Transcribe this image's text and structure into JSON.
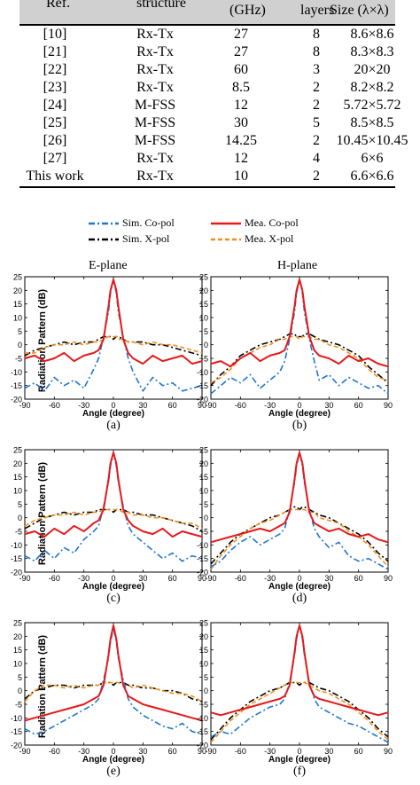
{
  "table": {
    "header": [
      "Ref.",
      "structure",
      "(GHz)",
      "layers",
      "Size (λ×λ)"
    ],
    "rows": [
      [
        "[10]",
        "Rx-Tx",
        "27",
        "8",
        "8.6×8.6"
      ],
      [
        "[21]",
        "Rx-Tx",
        "27",
        "8",
        "8.3×8.3"
      ],
      [
        "[22]",
        "Rx-Tx",
        "60",
        "3",
        "20×20"
      ],
      [
        "[23]",
        "Rx-Tx",
        "8.5",
        "2",
        "8.2×8.2"
      ],
      [
        "[24]",
        "M-FSS",
        "12",
        "2",
        "5.72×5.72"
      ],
      [
        "[25]",
        "M-FSS",
        "30",
        "5",
        "8.5×8.5"
      ],
      [
        "[26]",
        "M-FSS",
        "14.25",
        "2",
        "10.45×10.45"
      ],
      [
        "[27]",
        "Rx-Tx",
        "12",
        "4",
        "6×6"
      ],
      [
        "This work",
        "Rx-Tx",
        "10",
        "2",
        "6.6×6.6"
      ]
    ]
  },
  "legend": {
    "sim_co": "Sim. Co-pol",
    "mea_co": "Mea. Co-pol",
    "sim_x": "Sim. X-pol",
    "mea_x": "Mea. X-pol"
  },
  "colors": {
    "sim_co": "#1f77d0",
    "mea_co": "#e41a1c",
    "sim_x": "#000000",
    "mea_x": "#f28e1c"
  },
  "panel_titles": {
    "e_plane": "E-plane",
    "h_plane": "H-plane"
  },
  "ylabel": "Radiation Pattern (dB)",
  "xlabel": "Angle (degree)",
  "sub_labels": [
    "(a)",
    "(b)",
    "(c)",
    "(d)",
    "(e)",
    "(f)"
  ],
  "chart_data": {
    "type": "line",
    "xlabel": "Angle (degree)",
    "ylabel": "Radiation Pattern (dB)",
    "xlim": [
      -90,
      90
    ],
    "ylim": [
      -20,
      25
    ],
    "xticks": [
      -90,
      -60,
      -30,
      0,
      30,
      60,
      90
    ],
    "yticks": [
      -20,
      -15,
      -10,
      -5,
      0,
      5,
      10,
      15,
      20,
      25
    ],
    "x": [
      -90,
      -80,
      -70,
      -60,
      -50,
      -40,
      -30,
      -20,
      -15,
      -10,
      -5,
      -3,
      0,
      3,
      5,
      10,
      15,
      20,
      30,
      40,
      50,
      60,
      70,
      80,
      90
    ],
    "panels": [
      {
        "label": "(a)",
        "plane": "E-plane",
        "series": [
          {
            "name": "Sim. Co-pol",
            "values": [
              -16,
              -14,
              -17,
              -12,
              -15,
              -13,
              -16,
              -9,
              -5,
              3,
              12,
              19,
              24,
              19,
              12,
              3,
              -5,
              -10,
              -17,
              -12,
              -15,
              -14,
              -17,
              -16,
              -15
            ]
          },
          {
            "name": "Mea. Co-pol",
            "values": [
              -5,
              -4,
              -6,
              -5,
              -3,
              -6,
              -4,
              -3,
              -2,
              2,
              14,
              20,
              24,
              20,
              14,
              2,
              -3,
              -5,
              -7,
              -4,
              -6,
              -5,
              -4,
              -7,
              -6
            ]
          },
          {
            "name": "Sim. X-pol",
            "values": [
              -4,
              -2,
              -1,
              0,
              1,
              0,
              1,
              1,
              2,
              3,
              3,
              3,
              2,
              3,
              3,
              2,
              1,
              1,
              1,
              0,
              0,
              -1,
              -2,
              -3,
              -4
            ]
          },
          {
            "name": "Mea. X-pol",
            "values": [
              -3,
              -3,
              -1,
              0,
              0,
              1,
              0,
              1,
              1,
              2,
              3,
              3,
              3,
              3,
              2,
              2,
              1,
              1,
              0,
              1,
              0,
              0,
              -1,
              -2,
              -3
            ]
          }
        ]
      },
      {
        "label": "(b)",
        "plane": "H-plane",
        "series": [
          {
            "name": "Sim. Co-pol",
            "values": [
              -18,
              -15,
              -12,
              -14,
              -11,
              -16,
              -13,
              -10,
              -6,
              2,
              12,
              19,
              24,
              19,
              12,
              2,
              -6,
              -13,
              -11,
              -15,
              -12,
              -14,
              -16,
              -15,
              -18
            ]
          },
          {
            "name": "Mea. Co-pol",
            "values": [
              -7,
              -6,
              -8,
              -5,
              -3,
              -6,
              -4,
              -3,
              -2,
              3,
              14,
              20,
              24,
              20,
              14,
              3,
              -2,
              -4,
              -5,
              -7,
              -4,
              -6,
              -5,
              -7,
              -8
            ]
          },
          {
            "name": "Sim. X-pol",
            "values": [
              -15,
              -11,
              -8,
              -4,
              -2,
              0,
              1,
              2,
              3,
              4,
              4,
              3,
              3,
              3,
              4,
              4,
              3,
              2,
              1,
              0,
              -2,
              -4,
              -8,
              -11,
              -14
            ]
          },
          {
            "name": "Mea. X-pol",
            "values": [
              -14,
              -12,
              -9,
              -5,
              -3,
              -1,
              0,
              2,
              2,
              3,
              3,
              3,
              2,
              3,
              3,
              3,
              2,
              2,
              0,
              -1,
              -3,
              -5,
              -9,
              -12,
              -13
            ]
          }
        ]
      },
      {
        "label": "(c)",
        "plane": "E-plane",
        "series": [
          {
            "name": "Sim. Co-pol",
            "values": [
              -14,
              -16,
              -12,
              -15,
              -11,
              -13,
              -8,
              -5,
              -3,
              4,
              13,
              19,
              24,
              19,
              13,
              4,
              -3,
              -6,
              -9,
              -12,
              -15,
              -13,
              -16,
              -14,
              -15
            ]
          },
          {
            "name": "Mea. Co-pol",
            "values": [
              -6,
              -5,
              -7,
              -4,
              -6,
              -3,
              -5,
              -2,
              -1,
              3,
              14,
              20,
              24,
              20,
              14,
              3,
              -1,
              -3,
              -5,
              -6,
              -4,
              -7,
              -5,
              -6,
              -7
            ]
          },
          {
            "name": "Sim. X-pol",
            "values": [
              -4,
              -2,
              0,
              1,
              2,
              1,
              2,
              2,
              3,
              3,
              3,
              3,
              2,
              3,
              3,
              3,
              2,
              2,
              1,
              1,
              0,
              -1,
              -2,
              -3,
              -5
            ]
          },
          {
            "name": "Mea. X-pol",
            "values": [
              -3,
              -1,
              0,
              1,
              1,
              2,
              1,
              2,
              2,
              3,
              3,
              3,
              3,
              3,
              3,
              2,
              2,
              1,
              1,
              0,
              0,
              -1,
              -2,
              -2,
              -4
            ]
          }
        ]
      },
      {
        "label": "(d)",
        "plane": "H-plane",
        "series": [
          {
            "name": "Sim. Co-pol",
            "values": [
              -18,
              -16,
              -12,
              -9,
              -7,
              -10,
              -8,
              -6,
              -4,
              3,
              13,
              19,
              24,
              19,
              13,
              3,
              -4,
              -7,
              -11,
              -9,
              -14,
              -16,
              -15,
              -17,
              -19
            ]
          },
          {
            "name": "Mea. Co-pol",
            "values": [
              -9,
              -8,
              -7,
              -6,
              -5,
              -4,
              -5,
              -3,
              -2,
              2,
              14,
              20,
              24,
              20,
              14,
              2,
              -2,
              -3,
              -5,
              -4,
              -6,
              -7,
              -6,
              -8,
              -9
            ]
          },
          {
            "name": "Sim. X-pol",
            "values": [
              -17,
              -13,
              -9,
              -6,
              -4,
              -2,
              0,
              1,
              2,
              3,
              4,
              4,
              3,
              4,
              4,
              3,
              2,
              1,
              0,
              -2,
              -4,
              -6,
              -9,
              -13,
              -16
            ]
          },
          {
            "name": "Mea. X-pol",
            "values": [
              -19,
              -14,
              -10,
              -7,
              -4,
              -2,
              -1,
              1,
              2,
              3,
              3,
              3,
              3,
              3,
              3,
              2,
              2,
              0,
              -1,
              -2,
              -5,
              -7,
              -10,
              -14,
              -18
            ]
          }
        ]
      },
      {
        "label": "(e)",
        "plane": "E-plane",
        "series": [
          {
            "name": "Sim. Co-pol",
            "values": [
              -14,
              -16,
              -15,
              -13,
              -11,
              -9,
              -7,
              -5,
              -3,
              4,
              12,
              18,
              23,
              18,
              12,
              4,
              -3,
              -6,
              -9,
              -11,
              -13,
              -14,
              -12,
              -15,
              -16
            ]
          },
          {
            "name": "Mea. Co-pol",
            "values": [
              -11,
              -10,
              -9,
              -8,
              -7,
              -6,
              -5,
              -3,
              -2,
              2,
              13,
              19,
              24,
              19,
              13,
              2,
              -2,
              -3,
              -5,
              -6,
              -7,
              -8,
              -9,
              -10,
              -11
            ]
          },
          {
            "name": "Sim. X-pol",
            "values": [
              -3,
              0,
              1,
              2,
              2,
              1,
              2,
              2,
              2,
              3,
              3,
              3,
              2,
              3,
              3,
              3,
              2,
              2,
              1,
              1,
              0,
              0,
              -1,
              -3,
              -4
            ]
          },
          {
            "name": "Mea. X-pol",
            "values": [
              -4,
              0,
              2,
              2,
              1,
              2,
              1,
              2,
              2,
              3,
              3,
              3,
              3,
              3,
              3,
              2,
              2,
              1,
              2,
              1,
              0,
              -1,
              -1,
              -2,
              -4
            ]
          }
        ]
      },
      {
        "label": "(f)",
        "plane": "H-plane",
        "series": [
          {
            "name": "Sim. Co-pol",
            "values": [
              -17,
              -15,
              -16,
              -13,
              -10,
              -8,
              -6,
              -5,
              -3,
              3,
              13,
              19,
              24,
              19,
              13,
              3,
              -3,
              -6,
              -8,
              -10,
              -12,
              -13,
              -15,
              -17,
              -19
            ]
          },
          {
            "name": "Mea. Co-pol",
            "values": [
              -8,
              -9,
              -8,
              -7,
              -6,
              -5,
              -4,
              -3,
              -2,
              2,
              14,
              20,
              24,
              20,
              14,
              2,
              -2,
              -3,
              -4,
              -5,
              -6,
              -7,
              -8,
              -9,
              -8
            ]
          },
          {
            "name": "Sim. X-pol",
            "values": [
              -18,
              -14,
              -10,
              -7,
              -4,
              -2,
              0,
              1,
              2,
              3,
              3,
              3,
              2,
              3,
              3,
              3,
              2,
              1,
              0,
              -2,
              -4,
              -7,
              -10,
              -14,
              -17
            ]
          },
          {
            "name": "Mea. X-pol",
            "values": [
              -19,
              -15,
              -11,
              -8,
              -5,
              -3,
              -1,
              1,
              2,
              3,
              3,
              3,
              3,
              3,
              3,
              2,
              1,
              0,
              -1,
              -3,
              -5,
              -8,
              -11,
              -15,
              -18
            ]
          }
        ]
      }
    ]
  }
}
